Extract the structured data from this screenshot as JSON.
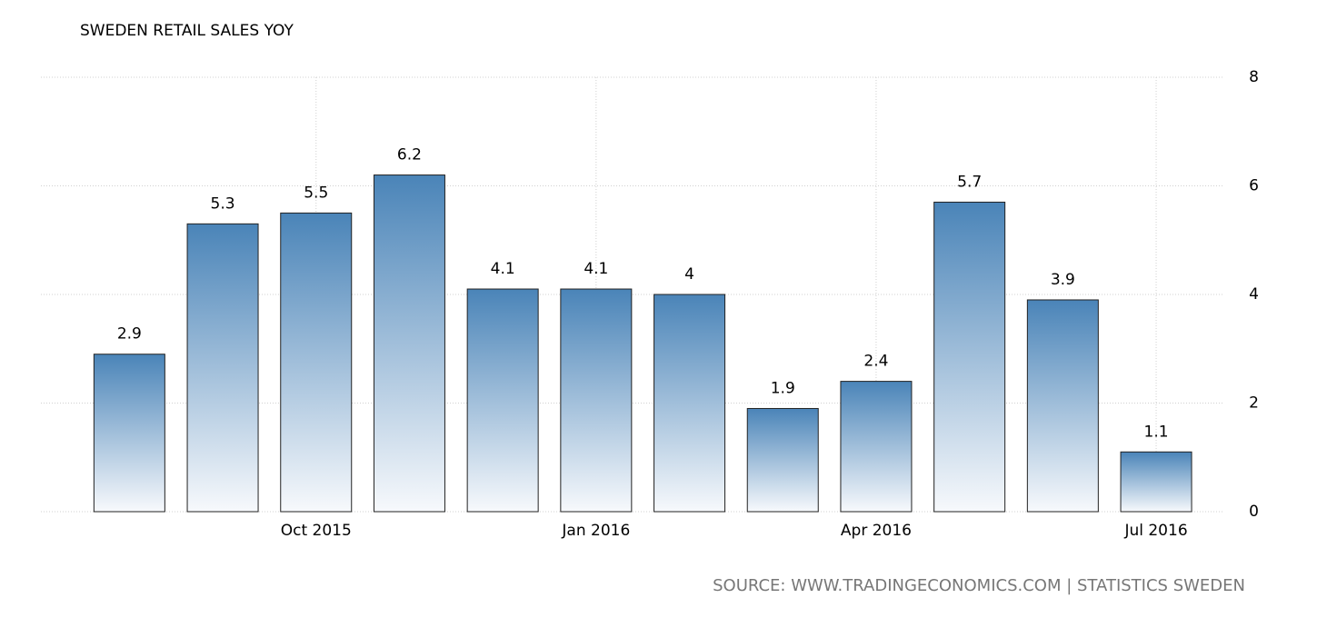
{
  "chart_data": {
    "type": "bar",
    "title": "SWEDEN RETAIL SALES YOY",
    "categories": [
      null,
      null,
      "Oct 2015",
      null,
      null,
      "Jan 2016",
      null,
      null,
      "Apr 2016",
      null,
      null,
      "Jul 2016"
    ],
    "values": [
      2.9,
      5.3,
      5.5,
      6.2,
      4.1,
      4.1,
      4,
      1.9,
      2.4,
      5.7,
      3.9,
      1.1
    ],
    "color": "#4a84b8",
    "ylim": [
      0,
      8
    ],
    "yticks": [
      0,
      2,
      4,
      6,
      8
    ],
    "grid": true,
    "source": "SOURCE: WWW.TRADINGECONOMICS.COM | STATISTICS SWEDEN"
  }
}
